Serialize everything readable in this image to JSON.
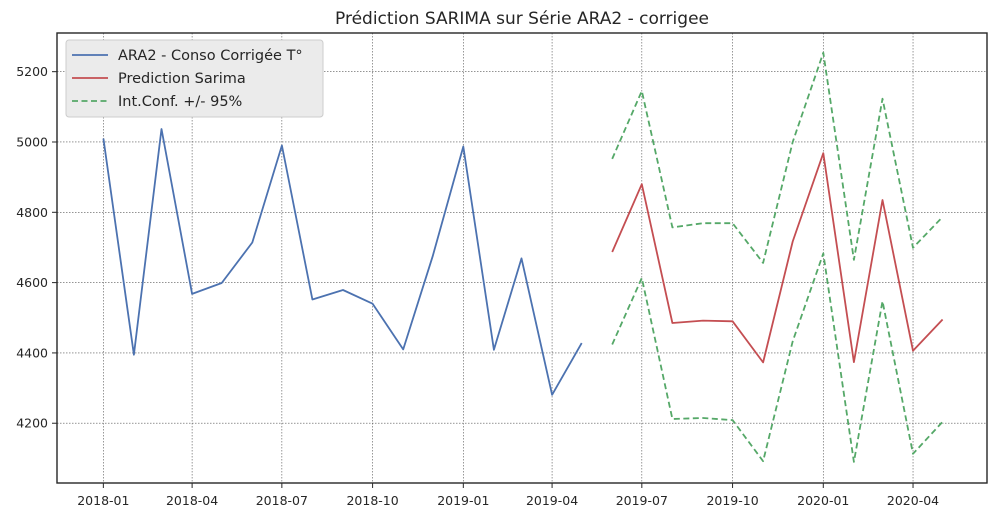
{
  "chart_data": {
    "type": "line",
    "title": "Prédiction SARIMA sur Série ARA2 - corrigee",
    "xlabel": "",
    "ylabel": "",
    "x_ticks": [
      "2018-01",
      "2018-04",
      "2018-07",
      "2018-10",
      "2019-01",
      "2019-04",
      "2019-07",
      "2019-10",
      "2020-01",
      "2020-04"
    ],
    "y_ticks": [
      "4200",
      "4400",
      "4600",
      "4800",
      "5000",
      "5200"
    ],
    "xlim": [
      "2017-11-15",
      "2020-06-15"
    ],
    "ylim": [
      4030,
      5310
    ],
    "grid": true,
    "legend_position": "top-left",
    "series": [
      {
        "name": "ARA2 - Conso Corrigée T°",
        "color": "#4c72b0",
        "dash": "solid",
        "x": [
          "2018-01-01",
          "2018-02-01",
          "2018-03-01",
          "2018-04-01",
          "2018-05-01",
          "2018-06-01",
          "2018-07-01",
          "2018-08-01",
          "2018-09-01",
          "2018-10-01",
          "2018-11-01",
          "2018-12-01",
          "2019-01-01",
          "2019-02-01",
          "2019-03-01",
          "2019-04-01",
          "2019-05-01"
        ],
        "y": [
          5010,
          4395,
          5037,
          4568,
          4599,
          4714,
          4990,
          4552,
          4579,
          4540,
          4410,
          4675,
          4987,
          4409,
          4669,
          4281,
          4428
        ]
      },
      {
        "name": "Prediction Sarima",
        "color": "#c44e52",
        "dash": "solid",
        "x": [
          "2019-06-01",
          "2019-07-01",
          "2019-08-01",
          "2019-09-01",
          "2019-10-01",
          "2019-11-01",
          "2019-12-01",
          "2020-01-01",
          "2020-02-01",
          "2020-03-01",
          "2020-04-01",
          "2020-05-01"
        ],
        "y": [
          4687,
          4880,
          4485,
          4492,
          4490,
          4373,
          4717,
          4968,
          4374,
          4835,
          4406,
          4495
        ]
      },
      {
        "name": "Int.Conf. +/- 95%",
        "color": "#55a868",
        "dash": "dashed",
        "x": [
          "2019-06-01",
          "2019-07-01",
          "2019-08-01",
          "2019-09-01",
          "2019-10-01",
          "2019-11-01",
          "2019-12-01",
          "2020-01-01",
          "2020-02-01",
          "2020-03-01",
          "2020-04-01",
          "2020-05-01"
        ],
        "y": [
          4952,
          5145,
          4757,
          4769,
          4769,
          4656,
          5000,
          5254,
          4665,
          5123,
          4699,
          4787
        ]
      },
      {
        "name": "",
        "color": "#55a868",
        "dash": "dashed",
        "x": [
          "2019-06-01",
          "2019-07-01",
          "2019-08-01",
          "2019-09-01",
          "2019-10-01",
          "2019-11-01",
          "2019-12-01",
          "2020-01-01",
          "2020-02-01",
          "2020-03-01",
          "2020-04-01",
          "2020-05-01"
        ],
        "y": [
          4424,
          4613,
          4212,
          4215,
          4209,
          4092,
          4433,
          4683,
          4090,
          4547,
          4113,
          4204
        ]
      }
    ]
  }
}
